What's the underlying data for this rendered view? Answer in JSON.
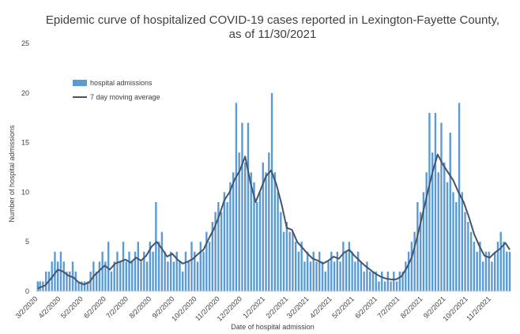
{
  "chart_data": {
    "type": "bar",
    "title_lines": [
      "Epidemic curve of hospitalized COVID-19 cases reported in Lexington-Fayette County,",
      "as of 11/30/2021"
    ],
    "xlabel": "Date of hospital admission",
    "ylabel": "Number of hospital admissions",
    "ylim": [
      0,
      25
    ],
    "y_ticks": [
      "0",
      "5",
      "10",
      "15",
      "20",
      "25"
    ],
    "x_start": "2020-03-02",
    "x_end": "2021-11-30",
    "x_ticks": [
      "3/2/2020",
      "4/2/2020",
      "5/2/2020",
      "6/2/2020",
      "7/2/2020",
      "8/2/2020",
      "9/2/2020",
      "10/2/2020",
      "11/2/2020",
      "12/2/2020",
      "1/2/2021",
      "2/2/2021",
      "3/2/2021",
      "4/2/2021",
      "5/2/2021",
      "6/2/2021",
      "7/2/2021",
      "8/2/2021",
      "9/2/2021",
      "10/2/2021",
      "11/2/2021"
    ],
    "grid": false,
    "legend_position": "top-left",
    "series": [
      {
        "name": "hospital admissions",
        "kind": "bar",
        "color": "#5b9bd5",
        "points": [
          [
            "2020-03-05",
            1
          ],
          [
            "2020-03-08",
            1
          ],
          [
            "2020-03-12",
            1
          ],
          [
            "2020-03-16",
            2
          ],
          [
            "2020-03-20",
            2
          ],
          [
            "2020-03-24",
            3
          ],
          [
            "2020-03-28",
            4
          ],
          [
            "2020-04-01",
            3
          ],
          [
            "2020-04-05",
            4
          ],
          [
            "2020-04-09",
            3
          ],
          [
            "2020-04-13",
            2
          ],
          [
            "2020-04-17",
            2
          ],
          [
            "2020-04-21",
            3
          ],
          [
            "2020-04-25",
            2
          ],
          [
            "2020-04-29",
            1
          ],
          [
            "2020-05-03",
            1
          ],
          [
            "2020-05-07",
            1
          ],
          [
            "2020-05-11",
            1
          ],
          [
            "2020-05-15",
            2
          ],
          [
            "2020-05-19",
            3
          ],
          [
            "2020-05-23",
            2
          ],
          [
            "2020-05-27",
            3
          ],
          [
            "2020-05-31",
            4
          ],
          [
            "2020-06-04",
            3
          ],
          [
            "2020-06-08",
            5
          ],
          [
            "2020-06-12",
            2
          ],
          [
            "2020-06-16",
            3
          ],
          [
            "2020-06-20",
            4
          ],
          [
            "2020-06-24",
            3
          ],
          [
            "2020-06-28",
            5
          ],
          [
            "2020-07-02",
            3
          ],
          [
            "2020-07-06",
            4
          ],
          [
            "2020-07-10",
            3
          ],
          [
            "2020-07-14",
            4
          ],
          [
            "2020-07-18",
            5
          ],
          [
            "2020-07-22",
            3
          ],
          [
            "2020-07-26",
            4
          ],
          [
            "2020-07-30",
            3
          ],
          [
            "2020-08-03",
            5
          ],
          [
            "2020-08-07",
            4
          ],
          [
            "2020-08-11",
            9
          ],
          [
            "2020-08-15",
            5
          ],
          [
            "2020-08-19",
            6
          ],
          [
            "2020-08-23",
            4
          ],
          [
            "2020-08-27",
            3
          ],
          [
            "2020-08-31",
            4
          ],
          [
            "2020-09-04",
            3
          ],
          [
            "2020-09-08",
            4
          ],
          [
            "2020-09-12",
            3
          ],
          [
            "2020-09-16",
            2
          ],
          [
            "2020-09-20",
            4
          ],
          [
            "2020-09-24",
            3
          ],
          [
            "2020-09-28",
            5
          ],
          [
            "2020-10-02",
            4
          ],
          [
            "2020-10-06",
            3
          ],
          [
            "2020-10-10",
            5
          ],
          [
            "2020-10-14",
            4
          ],
          [
            "2020-10-18",
            6
          ],
          [
            "2020-10-22",
            5
          ],
          [
            "2020-10-26",
            7
          ],
          [
            "2020-10-30",
            8
          ],
          [
            "2020-11-03",
            9
          ],
          [
            "2020-11-07",
            8
          ],
          [
            "2020-11-11",
            10
          ],
          [
            "2020-11-15",
            9
          ],
          [
            "2020-11-19",
            11
          ],
          [
            "2020-11-23",
            12
          ],
          [
            "2020-11-27",
            19
          ],
          [
            "2020-12-01",
            14
          ],
          [
            "2020-12-05",
            17
          ],
          [
            "2020-12-09",
            13
          ],
          [
            "2020-12-13",
            17
          ],
          [
            "2020-12-17",
            12
          ],
          [
            "2020-12-21",
            11
          ],
          [
            "2020-12-25",
            9
          ],
          [
            "2020-12-29",
            10
          ],
          [
            "2021-01-02",
            13
          ],
          [
            "2021-01-06",
            12
          ],
          [
            "2021-01-10",
            14
          ],
          [
            "2021-01-14",
            20
          ],
          [
            "2021-01-18",
            12
          ],
          [
            "2021-01-22",
            10
          ],
          [
            "2021-01-26",
            8
          ],
          [
            "2021-01-30",
            6
          ],
          [
            "2021-02-03",
            7
          ],
          [
            "2021-02-07",
            6
          ],
          [
            "2021-02-11",
            6
          ],
          [
            "2021-02-15",
            5
          ],
          [
            "2021-02-19",
            4
          ],
          [
            "2021-02-23",
            5
          ],
          [
            "2021-02-27",
            3
          ],
          [
            "2021-03-03",
            4
          ],
          [
            "2021-03-07",
            3
          ],
          [
            "2021-03-11",
            4
          ],
          [
            "2021-03-15",
            3
          ],
          [
            "2021-03-19",
            4
          ],
          [
            "2021-03-23",
            3
          ],
          [
            "2021-03-27",
            2
          ],
          [
            "2021-03-31",
            3
          ],
          [
            "2021-04-04",
            4
          ],
          [
            "2021-04-08",
            3
          ],
          [
            "2021-04-12",
            4
          ],
          [
            "2021-04-16",
            3
          ],
          [
            "2021-04-20",
            5
          ],
          [
            "2021-04-24",
            4
          ],
          [
            "2021-04-28",
            5
          ],
          [
            "2021-05-02",
            4
          ],
          [
            "2021-05-06",
            3
          ],
          [
            "2021-05-10",
            4
          ],
          [
            "2021-05-14",
            3
          ],
          [
            "2021-05-18",
            2
          ],
          [
            "2021-05-22",
            3
          ],
          [
            "2021-05-26",
            2
          ],
          [
            "2021-05-30",
            2
          ],
          [
            "2021-06-03",
            2
          ],
          [
            "2021-06-07",
            1
          ],
          [
            "2021-06-11",
            2
          ],
          [
            "2021-06-15",
            1
          ],
          [
            "2021-06-19",
            2
          ],
          [
            "2021-06-23",
            1
          ],
          [
            "2021-06-27",
            2
          ],
          [
            "2021-07-01",
            1
          ],
          [
            "2021-07-05",
            2
          ],
          [
            "2021-07-09",
            2
          ],
          [
            "2021-07-13",
            3
          ],
          [
            "2021-07-17",
            4
          ],
          [
            "2021-07-21",
            5
          ],
          [
            "2021-07-25",
            6
          ],
          [
            "2021-07-29",
            9
          ],
          [
            "2021-08-02",
            8
          ],
          [
            "2021-08-06",
            10
          ],
          [
            "2021-08-10",
            12
          ],
          [
            "2021-08-14",
            18
          ],
          [
            "2021-08-18",
            14
          ],
          [
            "2021-08-22",
            18
          ],
          [
            "2021-08-26",
            12
          ],
          [
            "2021-08-30",
            17
          ],
          [
            "2021-09-03",
            13
          ],
          [
            "2021-09-07",
            11
          ],
          [
            "2021-09-11",
            16
          ],
          [
            "2021-09-15",
            10
          ],
          [
            "2021-09-19",
            9
          ],
          [
            "2021-09-23",
            19
          ],
          [
            "2021-09-27",
            10
          ],
          [
            "2021-10-01",
            8
          ],
          [
            "2021-10-05",
            7
          ],
          [
            "2021-10-09",
            6
          ],
          [
            "2021-10-13",
            5
          ],
          [
            "2021-10-17",
            4
          ],
          [
            "2021-10-21",
            5
          ],
          [
            "2021-10-25",
            3
          ],
          [
            "2021-10-29",
            4
          ],
          [
            "2021-11-02",
            4
          ],
          [
            "2021-11-06",
            3
          ],
          [
            "2021-11-10",
            4
          ],
          [
            "2021-11-14",
            5
          ],
          [
            "2021-11-18",
            6
          ],
          [
            "2021-11-22",
            5
          ],
          [
            "2021-11-26",
            4
          ],
          [
            "2021-11-30",
            4
          ]
        ]
      },
      {
        "name": "7 day moving average",
        "kind": "line",
        "color": "#44546a",
        "points": [
          [
            "2020-03-05",
            0.3
          ],
          [
            "2020-03-15",
            0.6
          ],
          [
            "2020-03-25",
            1.5
          ],
          [
            "2020-04-01",
            2.2
          ],
          [
            "2020-04-08",
            2.0
          ],
          [
            "2020-04-15",
            1.6
          ],
          [
            "2020-04-22",
            1.4
          ],
          [
            "2020-04-29",
            0.9
          ],
          [
            "2020-05-06",
            0.7
          ],
          [
            "2020-05-13",
            0.9
          ],
          [
            "2020-05-20",
            1.6
          ],
          [
            "2020-05-27",
            2.1
          ],
          [
            "2020-06-03",
            2.6
          ],
          [
            "2020-06-10",
            2.2
          ],
          [
            "2020-06-17",
            2.8
          ],
          [
            "2020-06-24",
            3.0
          ],
          [
            "2020-07-01",
            3.2
          ],
          [
            "2020-07-08",
            2.9
          ],
          [
            "2020-07-15",
            3.4
          ],
          [
            "2020-07-22",
            3.1
          ],
          [
            "2020-07-29",
            3.6
          ],
          [
            "2020-08-05",
            4.5
          ],
          [
            "2020-08-12",
            5.0
          ],
          [
            "2020-08-19",
            4.3
          ],
          [
            "2020-08-26",
            3.5
          ],
          [
            "2020-09-02",
            3.8
          ],
          [
            "2020-09-09",
            3.2
          ],
          [
            "2020-09-16",
            2.8
          ],
          [
            "2020-09-23",
            3.0
          ],
          [
            "2020-09-30",
            3.3
          ],
          [
            "2020-10-07",
            3.8
          ],
          [
            "2020-10-14",
            4.2
          ],
          [
            "2020-10-21",
            5.3
          ],
          [
            "2020-10-28",
            6.3
          ],
          [
            "2020-11-04",
            7.6
          ],
          [
            "2020-11-11",
            9.2
          ],
          [
            "2020-11-18",
            10.0
          ],
          [
            "2020-11-25",
            11.3
          ],
          [
            "2020-12-02",
            12.2
          ],
          [
            "2020-12-09",
            13.6
          ],
          [
            "2020-12-16",
            11.0
          ],
          [
            "2020-12-23",
            9.0
          ],
          [
            "2020-12-30",
            10.3
          ],
          [
            "2021-01-06",
            11.6
          ],
          [
            "2021-01-13",
            12.2
          ],
          [
            "2021-01-20",
            10.8
          ],
          [
            "2021-01-27",
            8.8
          ],
          [
            "2021-02-03",
            6.4
          ],
          [
            "2021-02-10",
            6.2
          ],
          [
            "2021-02-17",
            5.0
          ],
          [
            "2021-02-24",
            4.4
          ],
          [
            "2021-03-03",
            3.8
          ],
          [
            "2021-03-10",
            3.3
          ],
          [
            "2021-03-17",
            3.1
          ],
          [
            "2021-03-24",
            2.8
          ],
          [
            "2021-03-31",
            3.1
          ],
          [
            "2021-04-07",
            3.5
          ],
          [
            "2021-04-14",
            3.3
          ],
          [
            "2021-04-21",
            3.9
          ],
          [
            "2021-04-28",
            4.2
          ],
          [
            "2021-05-05",
            3.6
          ],
          [
            "2021-05-12",
            3.1
          ],
          [
            "2021-05-19",
            2.6
          ],
          [
            "2021-05-26",
            2.2
          ],
          [
            "2021-06-02",
            1.8
          ],
          [
            "2021-06-09",
            1.5
          ],
          [
            "2021-06-16",
            1.3
          ],
          [
            "2021-06-23",
            1.2
          ],
          [
            "2021-06-30",
            1.2
          ],
          [
            "2021-07-07",
            1.5
          ],
          [
            "2021-07-14",
            2.3
          ],
          [
            "2021-07-21",
            3.4
          ],
          [
            "2021-07-28",
            5.3
          ],
          [
            "2021-08-04",
            7.5
          ],
          [
            "2021-08-11",
            9.8
          ],
          [
            "2021-08-18",
            12.0
          ],
          [
            "2021-08-25",
            13.8
          ],
          [
            "2021-09-01",
            12.8
          ],
          [
            "2021-09-08",
            12.0
          ],
          [
            "2021-09-15",
            11.2
          ],
          [
            "2021-09-22",
            10.0
          ],
          [
            "2021-09-29",
            9.0
          ],
          [
            "2021-10-06",
            7.5
          ],
          [
            "2021-10-13",
            5.8
          ],
          [
            "2021-10-20",
            4.6
          ],
          [
            "2021-10-27",
            3.6
          ],
          [
            "2021-11-03",
            3.4
          ],
          [
            "2021-11-10",
            3.9
          ],
          [
            "2021-11-17",
            4.3
          ],
          [
            "2021-11-24",
            4.9
          ],
          [
            "2021-11-30",
            4.2
          ]
        ]
      }
    ]
  }
}
